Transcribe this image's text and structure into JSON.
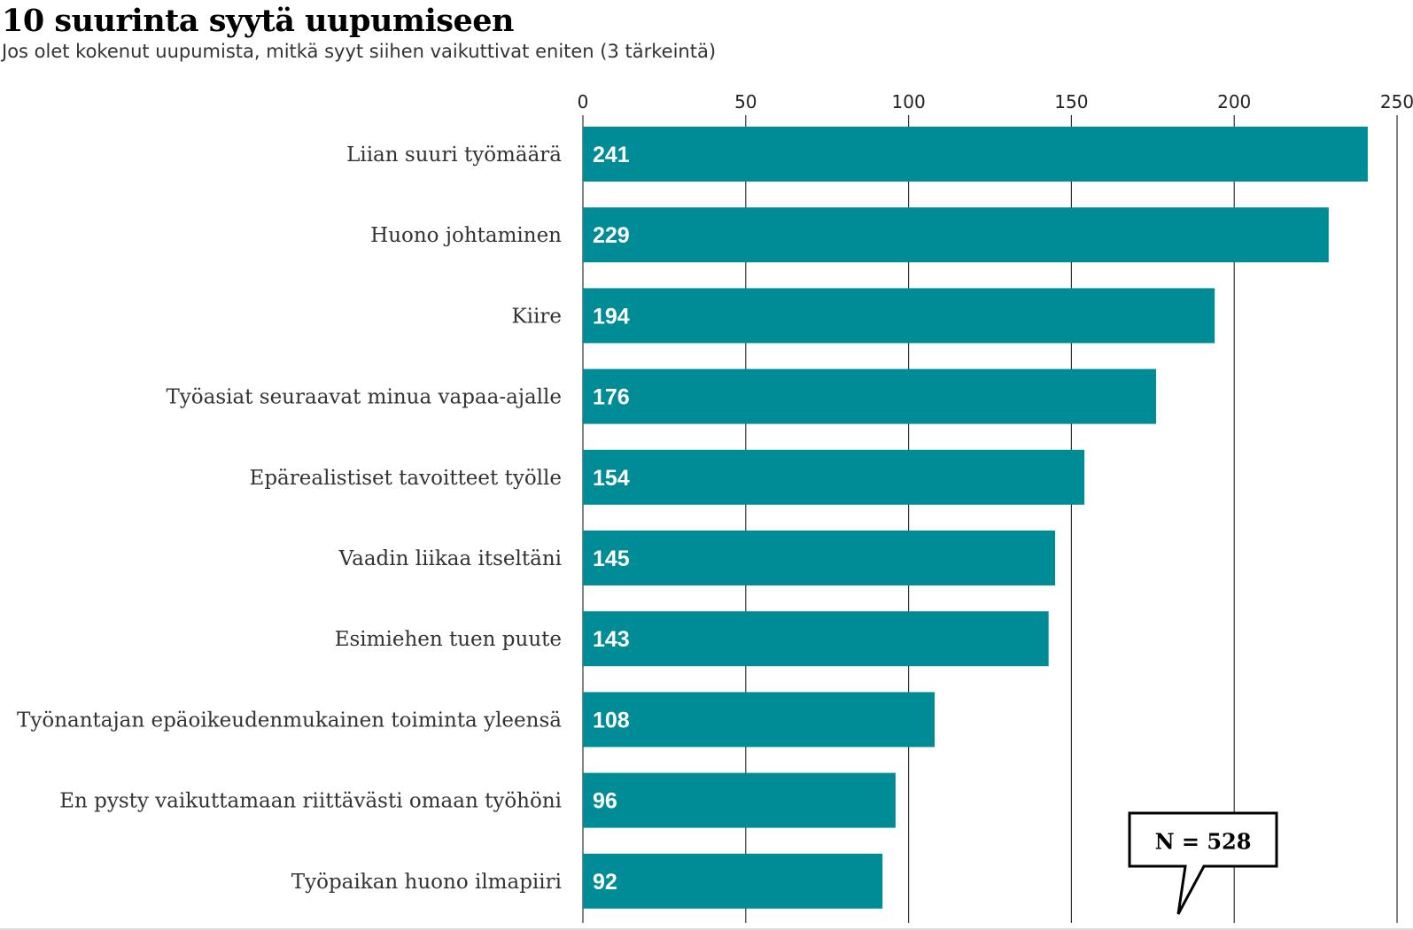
{
  "chart_data": {
    "type": "bar",
    "orientation": "horizontal",
    "title": "10 suurinta syytä uupumiseen",
    "subtitle": "Jos olet kokenut uupumista, mitkä syyt siihen vaikuttivat eniten (3 tärkeintä)",
    "categories": [
      "Liian suuri työmäärä",
      "Huono johtaminen",
      "Kiire",
      "Työasiat seuraavat minua vapaa-ajalle",
      "Epärealistiset tavoitteet työlle",
      "Vaadin liikaa itseltäni",
      "Esimiehen tuen puute",
      "Työnantajan epäoikeudenmukainen toiminta yleensä",
      "En pysty vaikuttamaan riittävästi omaan työhöni",
      "Työpaikan huono ilmapiiri"
    ],
    "values": [
      241,
      229,
      194,
      176,
      154,
      145,
      143,
      108,
      96,
      92
    ],
    "xlim": [
      0,
      250
    ],
    "xticks": [
      0,
      50,
      100,
      150,
      200,
      250
    ],
    "xaxis_position": "top",
    "grid": "vertical",
    "bar_color": "#008c96",
    "annotation": "N = 528"
  }
}
